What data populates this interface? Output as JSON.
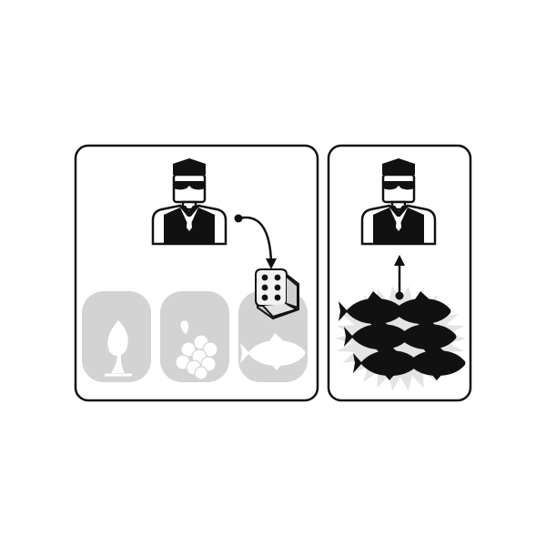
{
  "panels": [
    {
      "name": "choice-panel",
      "character": "guard",
      "arrow": "curved-arrow-to-die",
      "die": {
        "face_value": 6,
        "icon": "die-icon"
      },
      "resource_tiles": [
        {
          "resource": "plant",
          "icon": "sprout-icon",
          "state": "inactive"
        },
        {
          "resource": "berries",
          "icon": "berries-icon",
          "state": "inactive"
        },
        {
          "resource": "fish",
          "icon": "fish-icon",
          "state": "inactive"
        }
      ]
    },
    {
      "name": "result-panel",
      "character": "guard",
      "arrow": "up-arrow-to-character",
      "burst": {
        "icon": "burst-icon"
      },
      "fish_count": 6
    }
  ],
  "colors": {
    "outline": "#111111",
    "tile_fill": "#d3d3d3",
    "tile_icon": "#ffffff",
    "figure": "#111111",
    "burst": "#e4e4e4",
    "die_face": "#f2f2f2",
    "die_side": "#cfcfcf"
  }
}
